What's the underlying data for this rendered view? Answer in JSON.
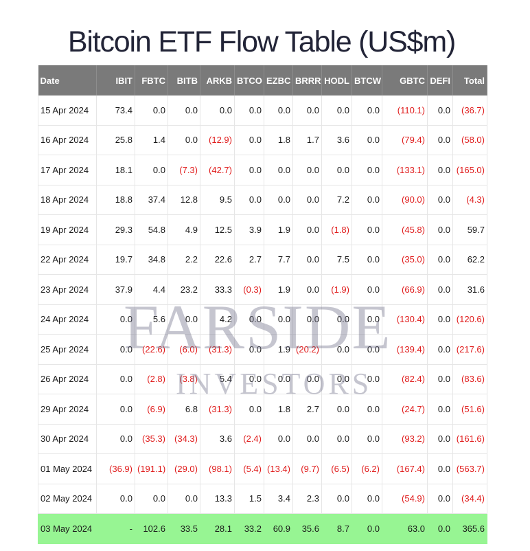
{
  "title": "Bitcoin ETF Flow Table (US$m)",
  "columns": [
    "Date",
    "IBIT",
    "FBTC",
    "BITB",
    "ARKB",
    "BTCO",
    "EZBC",
    "BRRR",
    "HODL",
    "BTCW",
    "GBTC",
    "DEFI",
    "Total"
  ],
  "rows": [
    [
      "15 Apr 2024",
      "73.4",
      "0.0",
      "0.0",
      "0.0",
      "0.0",
      "0.0",
      "0.0",
      "0.0",
      "0.0",
      "(110.1)",
      "0.0",
      "(36.7)"
    ],
    [
      "16 Apr 2024",
      "25.8",
      "1.4",
      "0.0",
      "(12.9)",
      "0.0",
      "1.8",
      "1.7",
      "3.6",
      "0.0",
      "(79.4)",
      "0.0",
      "(58.0)"
    ],
    [
      "17 Apr 2024",
      "18.1",
      "0.0",
      "(7.3)",
      "(42.7)",
      "0.0",
      "0.0",
      "0.0",
      "0.0",
      "0.0",
      "(133.1)",
      "0.0",
      "(165.0)"
    ],
    [
      "18 Apr 2024",
      "18.8",
      "37.4",
      "12.8",
      "9.5",
      "0.0",
      "0.0",
      "0.0",
      "7.2",
      "0.0",
      "(90.0)",
      "0.0",
      "(4.3)"
    ],
    [
      "19 Apr 2024",
      "29.3",
      "54.8",
      "4.9",
      "12.5",
      "3.9",
      "1.9",
      "0.0",
      "(1.8)",
      "0.0",
      "(45.8)",
      "0.0",
      "59.7"
    ],
    [
      "22 Apr 2024",
      "19.7",
      "34.8",
      "2.2",
      "22.6",
      "2.7",
      "7.7",
      "0.0",
      "7.5",
      "0.0",
      "(35.0)",
      "0.0",
      "62.2"
    ],
    [
      "23 Apr 2024",
      "37.9",
      "4.4",
      "23.2",
      "33.3",
      "(0.3)",
      "1.9",
      "0.0",
      "(1.9)",
      "0.0",
      "(66.9)",
      "0.0",
      "31.6"
    ],
    [
      "24 Apr 2024",
      "0.0",
      "5.6",
      "0.0",
      "4.2",
      "0.0",
      "0.0",
      "0.0",
      "0.0",
      "0.0",
      "(130.4)",
      "0.0",
      "(120.6)"
    ],
    [
      "25 Apr 2024",
      "0.0",
      "(22.6)",
      "(6.0)",
      "(31.3)",
      "0.0",
      "1.9",
      "(20.2)",
      "0.0",
      "0.0",
      "(139.4)",
      "0.0",
      "(217.6)"
    ],
    [
      "26 Apr 2024",
      "0.0",
      "(2.8)",
      "(3.8)",
      "5.4",
      "0.0",
      "0.0",
      "0.0",
      "0.0",
      "0.0",
      "(82.4)",
      "0.0",
      "(83.6)"
    ],
    [
      "29 Apr 2024",
      "0.0",
      "(6.9)",
      "6.8",
      "(31.3)",
      "0.0",
      "1.8",
      "2.7",
      "0.0",
      "0.0",
      "(24.7)",
      "0.0",
      "(51.6)"
    ],
    [
      "30 Apr 2024",
      "0.0",
      "(35.3)",
      "(34.3)",
      "3.6",
      "(2.4)",
      "0.0",
      "0.0",
      "0.0",
      "0.0",
      "(93.2)",
      "0.0",
      "(161.6)"
    ],
    [
      "01 May 2024",
      "(36.9)",
      "(191.1)",
      "(29.0)",
      "(98.1)",
      "(5.4)",
      "(13.4)",
      "(9.7)",
      "(6.5)",
      "(6.2)",
      "(167.4)",
      "0.0",
      "(563.7)"
    ],
    [
      "02 May 2024",
      "0.0",
      "0.0",
      "0.0",
      "13.3",
      "1.5",
      "3.4",
      "2.3",
      "0.0",
      "0.0",
      "(54.9)",
      "0.0",
      "(34.4)"
    ],
    [
      "03 May 2024",
      "-",
      "102.6",
      "33.5",
      "28.1",
      "33.2",
      "60.9",
      "35.6",
      "8.7",
      "0.0",
      "63.0",
      "0.0",
      "365.6"
    ]
  ],
  "highlight_row_index": 14,
  "watermark": {
    "line1": "FARSIDE",
    "line2": "INVESTORS"
  },
  "colors": {
    "header_bg": "#7a7a7a",
    "negative_text": "#e01b1b",
    "highlight_bg": "#97f593"
  }
}
